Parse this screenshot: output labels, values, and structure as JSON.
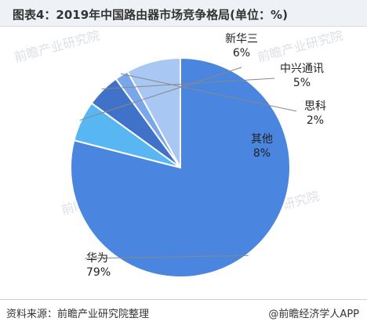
{
  "title": "图表4：2019年中国路由器市场竞争格局(单位：%)",
  "footer": {
    "source": "资料来源：前瞻产业研究院整理",
    "brand": "@前瞻经济学人APP"
  },
  "watermark": {
    "text": "前瞻产业研究院",
    "icon": "qianzhan-logo-icon"
  },
  "chart_data": {
    "type": "pie",
    "slices": [
      {
        "label": "华为",
        "value": 79,
        "display": "79%",
        "color": "#4a86e0"
      },
      {
        "label": "新华三",
        "value": 6,
        "display": "6%",
        "color": "#58b6f2"
      },
      {
        "label": "中兴通讯",
        "value": 5,
        "display": "5%",
        "color": "#3f72c8"
      },
      {
        "label": "思科",
        "value": 2,
        "display": "2%",
        "color": "#7aa6ea"
      },
      {
        "label": "其他",
        "value": 8,
        "display": "8%",
        "color": "#a9c7f3"
      }
    ],
    "legend": "none"
  }
}
